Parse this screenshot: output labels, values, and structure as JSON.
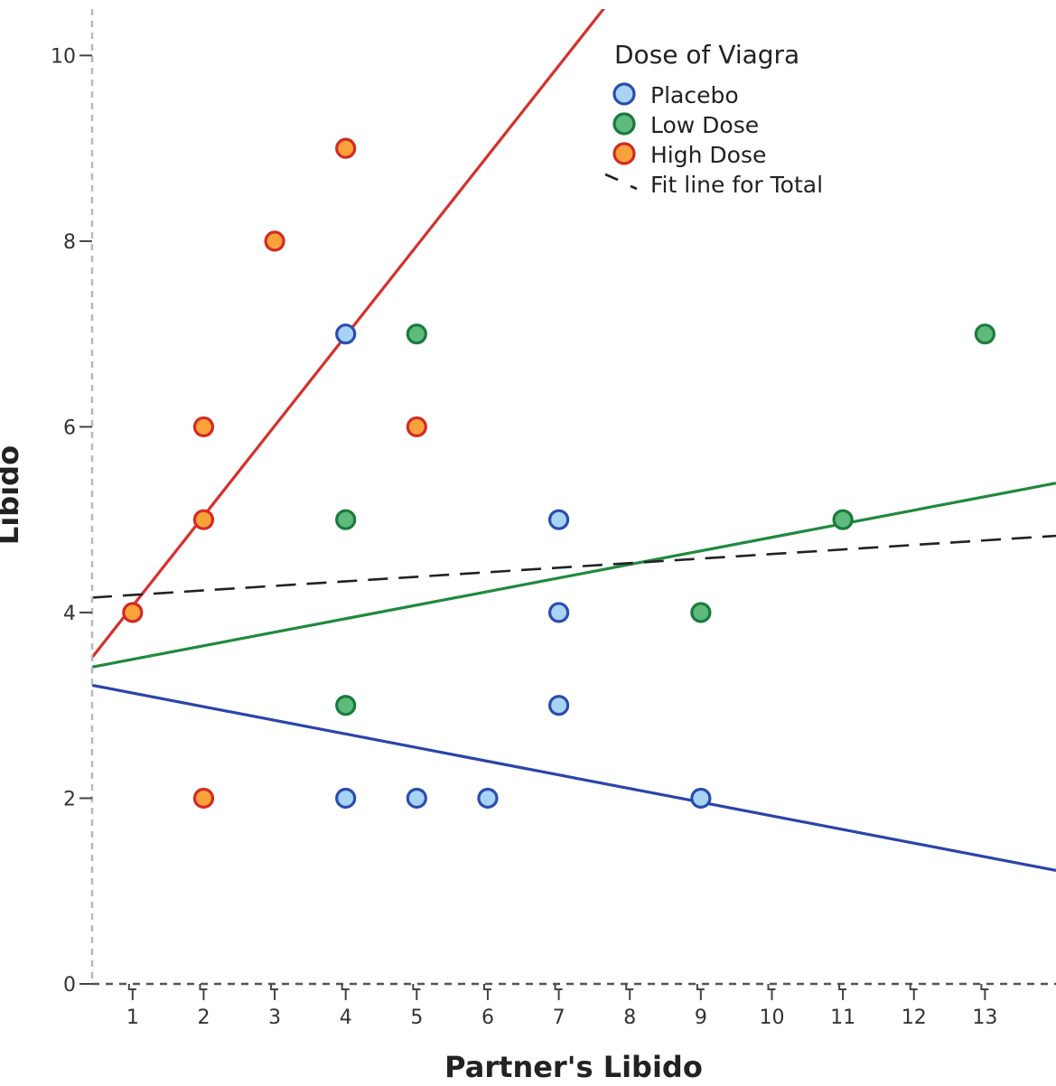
{
  "chart_data": {
    "type": "scatter",
    "xlabel": "Partner's Libido",
    "ylabel": "Libido",
    "xlim": [
      0.43,
      14
    ],
    "ylim": [
      0,
      10.5
    ],
    "x_ticks": [
      1,
      2,
      3,
      4,
      5,
      6,
      7,
      8,
      9,
      10,
      11,
      12,
      13
    ],
    "y_ticks": [
      0,
      2,
      4,
      6,
      8,
      10
    ],
    "grid": false,
    "legend": {
      "title": "Dose of Viagra",
      "position": "top-right",
      "entries": [
        {
          "label": "Placebo",
          "kind": "marker",
          "fill": "#a8d3f5",
          "stroke": "#2a4db0"
        },
        {
          "label": "Low Dose",
          "kind": "marker",
          "fill": "#5fba7d",
          "stroke": "#1a7a3c"
        },
        {
          "label": "High Dose",
          "kind": "marker",
          "fill": "#f9a23a",
          "stroke": "#d42a24"
        },
        {
          "label": "Fit line for Total",
          "kind": "dashed-line",
          "stroke": "#222222"
        }
      ]
    },
    "series": [
      {
        "name": "Placebo",
        "fill": "#a8d3f5",
        "stroke": "#2a4db0",
        "line_color": "#2a45a8",
        "points": [
          [
            4,
            7
          ],
          [
            7,
            5
          ],
          [
            7,
            4
          ],
          [
            7,
            3
          ],
          [
            4,
            2
          ],
          [
            5,
            2
          ],
          [
            6,
            2
          ],
          [
            9,
            2
          ]
        ],
        "fit": {
          "intercept": 3.28,
          "slope": -0.147
        }
      },
      {
        "name": "Low Dose",
        "fill": "#5fba7d",
        "stroke": "#1a7a3c",
        "line_color": "#1f8a3e",
        "points": [
          [
            5,
            7
          ],
          [
            13,
            7
          ],
          [
            4,
            5
          ],
          [
            11,
            5
          ],
          [
            9,
            4
          ],
          [
            4,
            3
          ]
        ],
        "fit": {
          "intercept": 3.35,
          "slope": 0.146
        }
      },
      {
        "name": "High Dose",
        "fill": "#f9a23a",
        "stroke": "#d42a24",
        "line_color": "#d6302e",
        "points": [
          [
            4,
            9
          ],
          [
            3,
            8
          ],
          [
            2,
            6
          ],
          [
            5,
            6
          ],
          [
            2,
            5
          ],
          [
            1,
            4
          ],
          [
            2,
            2
          ]
        ],
        "fit": {
          "intercept": 3.1,
          "slope": 0.97
        }
      }
    ],
    "total_fit": {
      "intercept": 4.14,
      "slope": 0.049,
      "color": "#222222",
      "dashed": true
    }
  }
}
